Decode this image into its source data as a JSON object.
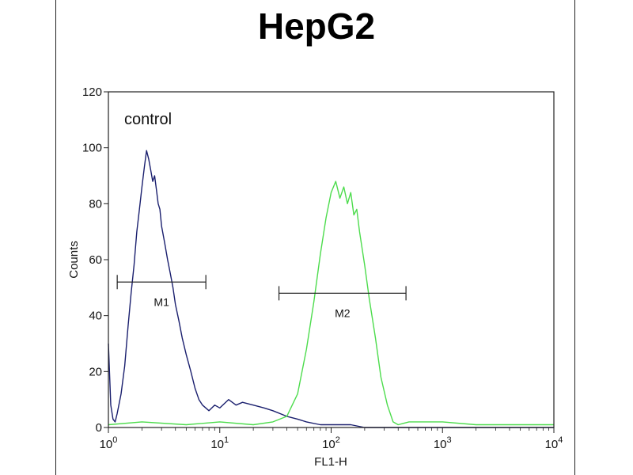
{
  "chart_data": {
    "type": "line",
    "title": "HepG2",
    "xlabel": "FL1-H",
    "ylabel": "Counts",
    "x_scale": "log",
    "xlim": [
      1,
      10000
    ],
    "ylim": [
      0,
      120
    ],
    "x_ticks": [
      {
        "value": 1,
        "base": "10",
        "exp": "0"
      },
      {
        "value": 10,
        "base": "10",
        "exp": "1"
      },
      {
        "value": 100,
        "base": "10",
        "exp": "2"
      },
      {
        "value": 1000,
        "base": "10",
        "exp": "3"
      },
      {
        "value": 10000,
        "base": "10",
        "exp": "4"
      }
    ],
    "y_ticks": [
      "0",
      "20",
      "40",
      "60",
      "80",
      "100",
      "120"
    ],
    "grid": false,
    "annotation": "control",
    "markers": [
      {
        "label": "M1",
        "x_start": 1.2,
        "x_end": 7.5,
        "y": 52
      },
      {
        "label": "M2",
        "x_start": 34,
        "x_end": 470,
        "y": 48
      }
    ],
    "series": [
      {
        "color": "#1a1f6e",
        "x": [
          1.0,
          1.05,
          1.1,
          1.15,
          1.2,
          1.3,
          1.4,
          1.5,
          1.6,
          1.7,
          1.8,
          1.9,
          2.0,
          2.1,
          2.2,
          2.3,
          2.4,
          2.5,
          2.6,
          2.7,
          2.8,
          2.9,
          3.0,
          3.2,
          3.4,
          3.6,
          3.8,
          4.0,
          4.3,
          4.6,
          5.0,
          5.5,
          6.0,
          6.5,
          7.0,
          8.0,
          9.0,
          10,
          12,
          14,
          16,
          20,
          25,
          30,
          40,
          50,
          60,
          80,
          100,
          150,
          200,
          300,
          400,
          600,
          1000,
          10000
        ],
        "y": [
          30,
          8,
          3,
          2,
          5,
          12,
          22,
          36,
          48,
          58,
          70,
          78,
          86,
          93,
          99,
          96,
          92,
          88,
          90,
          85,
          80,
          78,
          72,
          66,
          60,
          55,
          50,
          44,
          38,
          32,
          26,
          20,
          14,
          10,
          8,
          6,
          8,
          7,
          10,
          8,
          9,
          8,
          7,
          6,
          4,
          3,
          2,
          1,
          1,
          1,
          0,
          0,
          0,
          0,
          0,
          0
        ]
      },
      {
        "color": "#4ddc4d",
        "x": [
          1.0,
          2,
          5,
          10,
          20,
          30,
          40,
          50,
          60,
          70,
          80,
          90,
          100,
          110,
          120,
          130,
          140,
          150,
          160,
          170,
          180,
          200,
          220,
          250,
          280,
          320,
          360,
          400,
          500,
          1000,
          2000,
          5000,
          10000
        ],
        "y": [
          1,
          2,
          1,
          2,
          1,
          2,
          4,
          12,
          28,
          45,
          62,
          75,
          84,
          88,
          82,
          86,
          80,
          84,
          76,
          78,
          70,
          58,
          46,
          32,
          18,
          8,
          2,
          1,
          2,
          2,
          1,
          1,
          1
        ]
      }
    ]
  }
}
